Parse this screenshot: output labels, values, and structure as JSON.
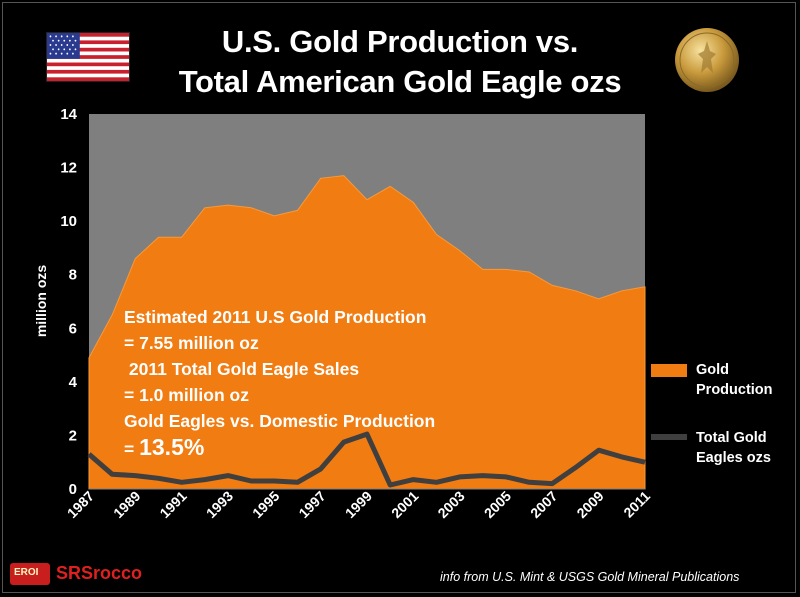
{
  "title_line1": "U.S. Gold Production vs.",
  "title_line2": "Total American Gold Eagle ozs",
  "annotation": {
    "line1": "Estimated 2011 U.S Gold Production",
    "line2": "= 7.55 million oz",
    "line3": " 2011 Total Gold Eagle Sales",
    "line4": "= 1.0 million oz",
    "line5": "Gold Eagles vs. Domestic Production",
    "line6_prefix": "= ",
    "line6_value": "13.5%"
  },
  "source_note": "info from U.S. Mint & USGS Gold Mineral Publications",
  "logo": {
    "badge": "EROI",
    "name": "SRSrocco"
  },
  "colors": {
    "gold_area": "#f07c12",
    "gold_edge": "#f89a3a",
    "eagle_line": "#3f3f3f",
    "plot_bg": "#7f7f7f"
  },
  "icons": {
    "flag": "us-flag-icon",
    "coin": "gold-eagle-coin-icon",
    "logo": "srsrocco-logo-icon"
  },
  "chart_data": {
    "type": "area",
    "x": [
      1987,
      1988,
      1989,
      1990,
      1991,
      1992,
      1993,
      1994,
      1995,
      1996,
      1997,
      1998,
      1999,
      2000,
      2001,
      2002,
      2003,
      2004,
      2005,
      2006,
      2007,
      2008,
      2009,
      2010,
      2011
    ],
    "x_tick_labels": [
      "1987",
      "1989",
      "1991",
      "1993",
      "1995",
      "1997",
      "1999",
      "2001",
      "2003",
      "2005",
      "2007",
      "2009",
      "2011"
    ],
    "ylabel": "million ozs",
    "ylim": [
      0,
      14
    ],
    "y_ticks": [
      0,
      2,
      4,
      6,
      8,
      10,
      12,
      14
    ],
    "grid": false,
    "legend_position": "right",
    "series": [
      {
        "name": "Gold Production",
        "kind": "area",
        "values": [
          4.9,
          6.5,
          8.6,
          9.4,
          9.4,
          10.5,
          10.6,
          10.5,
          10.2,
          10.4,
          11.6,
          11.7,
          10.8,
          11.3,
          10.7,
          9.5,
          8.9,
          8.2,
          8.2,
          8.1,
          7.6,
          7.4,
          7.1,
          7.4,
          7.55
        ]
      },
      {
        "name": "Total  Gold Eagles ozs",
        "kind": "line",
        "values": [
          1.3,
          0.55,
          0.5,
          0.4,
          0.25,
          0.35,
          0.5,
          0.3,
          0.3,
          0.25,
          0.75,
          1.75,
          2.05,
          0.15,
          0.35,
          0.25,
          0.45,
          0.5,
          0.45,
          0.25,
          0.2,
          0.8,
          1.45,
          1.2,
          1.0
        ]
      }
    ],
    "legend": {
      "gold_label": "Gold\nProduction",
      "eagle_label": "Total  Gold\nEagles ozs"
    }
  }
}
